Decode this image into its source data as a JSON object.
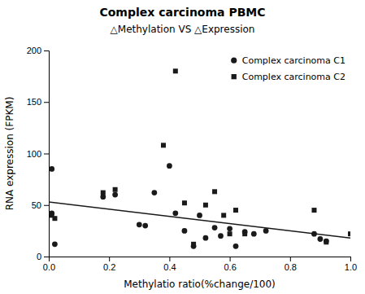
{
  "chart_data": {
    "type": "scatter",
    "title": "Complex carcinoma PBMC",
    "subtitle": "△Methylation VS △Expression",
    "x_label": "Methylatio ratio(%change/100)",
    "y_label": "RNA expression (FPKM)",
    "xlim": [
      0.0,
      1.0
    ],
    "ylim": [
      0,
      200
    ],
    "xticks": [
      {
        "value": 0.0,
        "label": "0.0"
      },
      0.2,
      0.4,
      0.6,
      0.8,
      {
        "value": 1.0,
        "label": "1.0"
      }
    ],
    "yticks": [
      0,
      50,
      100,
      150,
      200
    ],
    "grid": false,
    "legend": "upper right",
    "series": [
      {
        "name": "Complex carcinoma C1",
        "type": "scatter",
        "marker": "circle",
        "color": "#1a1a1a",
        "x": [
          0.01,
          0.01,
          0.02,
          0.18,
          0.22,
          0.3,
          0.32,
          0.35,
          0.4,
          0.42,
          0.45,
          0.48,
          0.5,
          0.52,
          0.55,
          0.57,
          0.6,
          0.62,
          0.65,
          0.68,
          0.72,
          0.88,
          0.9,
          0.92
        ],
        "values": [
          85,
          42,
          12,
          58,
          60,
          31,
          30,
          62,
          88,
          42,
          25,
          10,
          40,
          18,
          28,
          20,
          27,
          10,
          24,
          22,
          25,
          22,
          17,
          15
        ]
      },
      {
        "name": "Complex carcinoma C2",
        "type": "scatter",
        "marker": "square",
        "color": "#1a1a1a",
        "x": [
          0.01,
          0.02,
          0.18,
          0.22,
          0.38,
          0.42,
          0.45,
          0.48,
          0.52,
          0.55,
          0.58,
          0.6,
          0.62,
          0.65,
          0.88,
          0.92,
          1.0
        ],
        "values": [
          40,
          37,
          62,
          65,
          108,
          180,
          52,
          12,
          50,
          63,
          40,
          22,
          45,
          22,
          45,
          14,
          22
        ]
      },
      {
        "type": "line",
        "line_style": "solid",
        "color": "#1a1a1a",
        "x": [
          0.0,
          1.0
        ],
        "values": [
          53,
          18
        ]
      }
    ]
  }
}
